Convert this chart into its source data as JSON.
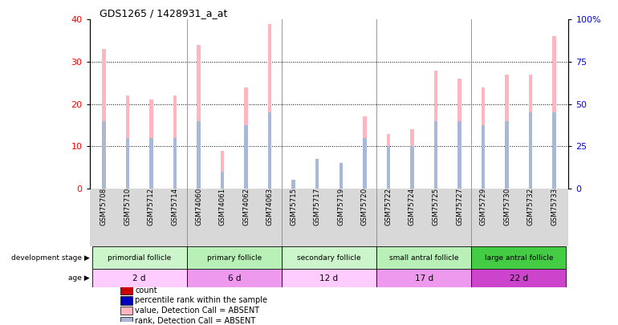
{
  "title": "GDS1265 / 1428931_a_at",
  "samples": [
    "GSM75708",
    "GSM75710",
    "GSM75712",
    "GSM75714",
    "GSM74060",
    "GSM74061",
    "GSM74062",
    "GSM74063",
    "GSM75715",
    "GSM75717",
    "GSM75719",
    "GSM75720",
    "GSM75722",
    "GSM75724",
    "GSM75725",
    "GSM75727",
    "GSM75729",
    "GSM75730",
    "GSM75732",
    "GSM75733"
  ],
  "absent_count": [
    33,
    22,
    21,
    22,
    34,
    9,
    24,
    39,
    2,
    7,
    6,
    17,
    13,
    14,
    28,
    26,
    24,
    27,
    27,
    36
  ],
  "absent_rank": [
    16,
    12,
    12,
    12,
    16,
    4,
    15,
    18,
    2,
    7,
    6,
    12,
    10,
    10,
    16,
    16,
    15,
    16,
    18,
    18
  ],
  "groups": [
    {
      "label": "primordial follicle",
      "start": 0,
      "end": 4
    },
    {
      "label": "primary follicle",
      "start": 4,
      "end": 8
    },
    {
      "label": "secondary follicle",
      "start": 8,
      "end": 12
    },
    {
      "label": "small antral follicle",
      "start": 12,
      "end": 16
    },
    {
      "label": "large antral follicle",
      "start": 16,
      "end": 20
    }
  ],
  "dev_colors": [
    "#ccf5cc",
    "#b8f0b8",
    "#ccf5cc",
    "#b8f0b8",
    "#44cc44"
  ],
  "age_labels": [
    "2 d",
    "6 d",
    "12 d",
    "17 d",
    "22 d"
  ],
  "age_colors": [
    "#ffccff",
    "#ee99ee",
    "#ffccff",
    "#ee99ee",
    "#cc44cc"
  ],
  "left_ylim": [
    0,
    40
  ],
  "right_ylim": [
    0,
    100
  ],
  "left_yticks": [
    0,
    10,
    20,
    30,
    40
  ],
  "right_yticks": [
    0,
    25,
    50,
    75,
    100
  ],
  "right_yticklabels": [
    "0",
    "25",
    "50",
    "75",
    "100%"
  ],
  "absent_bar_color": "#FFB6C1",
  "absent_rank_color": "#aab8d8",
  "present_bar_color": "#CC0000",
  "present_rank_color": "#0000BB",
  "bg_color": "#ffffff",
  "xtick_bg": "#d8d8d8"
}
